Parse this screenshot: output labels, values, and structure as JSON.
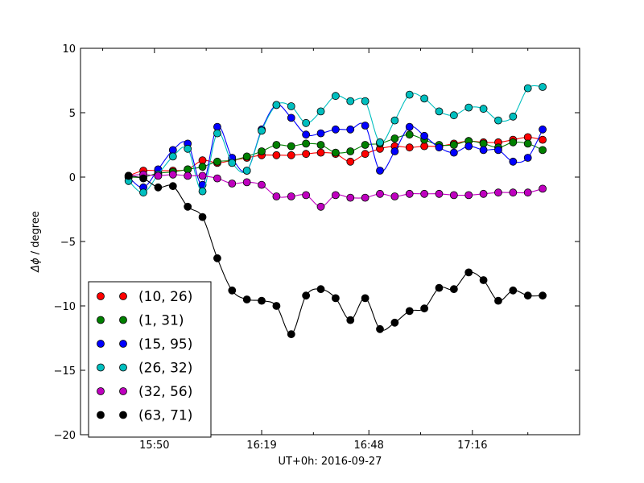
{
  "chart_data": {
    "type": "line",
    "xlabel": "UT+0h: 2016-09-27",
    "ylabel_symbol": "Δϕ",
    "ylabel_rest": " / degree",
    "ylim": [
      -20,
      10
    ],
    "yticks": [
      -20,
      -15,
      -10,
      -5,
      0,
      5,
      10
    ],
    "xlim": [
      "15:30",
      "17:45"
    ],
    "xticks": [
      "15:50",
      "16:19",
      "16:48",
      "17:16"
    ],
    "xminor": [
      "15:36",
      "16:04",
      "16:33",
      "17:02",
      "17:31"
    ],
    "grid": false,
    "legend": "bottom-left",
    "x": [
      "15:43",
      "15:47",
      "15:51",
      "15:55",
      "15:59",
      "16:03",
      "16:07",
      "16:11",
      "16:15",
      "16:19",
      "16:23",
      "16:27",
      "16:31",
      "16:35",
      "16:39",
      "16:43",
      "16:47",
      "16:51",
      "16:55",
      "16:59",
      "17:03",
      "17:07",
      "17:11",
      "17:15",
      "17:19",
      "17:23",
      "17:27",
      "17:31",
      "17:35"
    ],
    "series": [
      {
        "name": "(10, 26)",
        "color": "#ff0000",
        "values": [
          0.1,
          0.5,
          0.5,
          0.5,
          0.6,
          1.3,
          1.1,
          1.3,
          1.5,
          1.7,
          1.7,
          1.7,
          1.8,
          1.9,
          1.8,
          1.2,
          1.8,
          2.2,
          2.4,
          2.3,
          2.4,
          2.4,
          2.6,
          2.8,
          2.7,
          2.7,
          2.9,
          3.1,
          2.9
        ]
      },
      {
        "name": "(1, 31)",
        "color": "#008000",
        "values": [
          0.0,
          0.0,
          0.3,
          0.4,
          0.6,
          0.8,
          1.2,
          1.3,
          1.6,
          2.0,
          2.5,
          2.4,
          2.6,
          2.5,
          1.9,
          2.0,
          2.5,
          2.6,
          3.0,
          3.3,
          2.9,
          2.5,
          2.5,
          2.8,
          2.6,
          2.3,
          2.7,
          2.6,
          2.1
        ]
      },
      {
        "name": "(15, 95)",
        "color": "#0000ff",
        "values": [
          0.0,
          -0.8,
          0.6,
          2.1,
          2.6,
          -0.6,
          3.9,
          1.5,
          0.5,
          3.7,
          5.6,
          4.6,
          3.3,
          3.4,
          3.7,
          3.7,
          4.0,
          0.5,
          2.0,
          3.9,
          3.2,
          2.3,
          1.9,
          2.4,
          2.1,
          2.1,
          1.2,
          1.5,
          3.7
        ]
      },
      {
        "name": "(26, 32)",
        "color": "#00bfbf",
        "values": [
          -0.3,
          -1.2,
          0.2,
          1.6,
          2.2,
          -1.1,
          3.4,
          1.1,
          0.5,
          3.6,
          5.6,
          5.5,
          4.2,
          5.1,
          6.3,
          5.9,
          5.9,
          2.7,
          4.4,
          6.4,
          6.1,
          5.1,
          4.8,
          5.4,
          5.3,
          4.4,
          4.7,
          6.9,
          7.0
        ]
      },
      {
        "name": "(32, 56)",
        "color": "#bf00bf",
        "values": [
          0.1,
          0.2,
          0.1,
          0.2,
          0.1,
          0.1,
          -0.1,
          -0.5,
          -0.4,
          -0.6,
          -1.5,
          -1.5,
          -1.4,
          -2.3,
          -1.4,
          -1.6,
          -1.6,
          -1.3,
          -1.5,
          -1.3,
          -1.3,
          -1.3,
          -1.4,
          -1.4,
          -1.3,
          -1.2,
          -1.2,
          -1.2,
          -0.9
        ]
      },
      {
        "name": "(63, 71)",
        "color": "#000000",
        "values": [
          0.1,
          -0.1,
          -0.8,
          -0.7,
          -2.3,
          -3.1,
          -6.3,
          -8.8,
          -9.5,
          -9.6,
          -10.0,
          -12.2,
          -9.2,
          -8.7,
          -9.4,
          -11.1,
          -9.4,
          -11.8,
          -11.3,
          -10.4,
          -10.2,
          -8.6,
          -8.7,
          -7.4,
          -8.0,
          -9.6,
          -8.8,
          -9.2,
          -9.2
        ]
      }
    ]
  }
}
